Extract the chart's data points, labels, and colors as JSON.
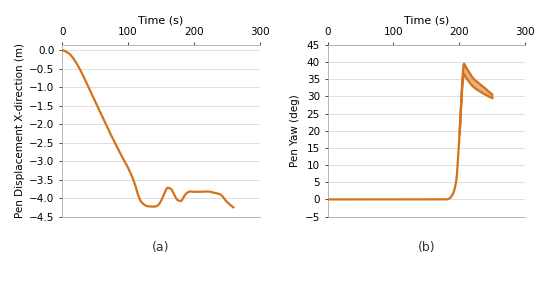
{
  "line_color": "#D4721A",
  "background_color": "#ffffff",
  "grid_color": "#d9d9d9",
  "spine_color": "#aaaaaa",
  "subplot_a": {
    "xlabel": "Time (s)",
    "ylabel": "Pen Displacement X-direction (m)",
    "xlim": [
      0,
      300
    ],
    "ylim": [
      -4.5,
      0.15
    ],
    "xticks": [
      0,
      100,
      200,
      300
    ],
    "yticks": [
      0,
      -0.5,
      -1,
      -1.5,
      -2,
      -2.5,
      -3,
      -3.5,
      -4,
      -4.5
    ],
    "label": "(a)"
  },
  "subplot_b": {
    "xlabel": "Time (s)",
    "ylabel": "Pen Yaw (deg)",
    "xlim": [
      0,
      300
    ],
    "ylim": [
      -5,
      45
    ],
    "xticks": [
      0,
      100,
      200,
      300
    ],
    "yticks": [
      -5,
      0,
      5,
      10,
      15,
      20,
      25,
      30,
      35,
      40,
      45
    ],
    "label": "(b)"
  }
}
